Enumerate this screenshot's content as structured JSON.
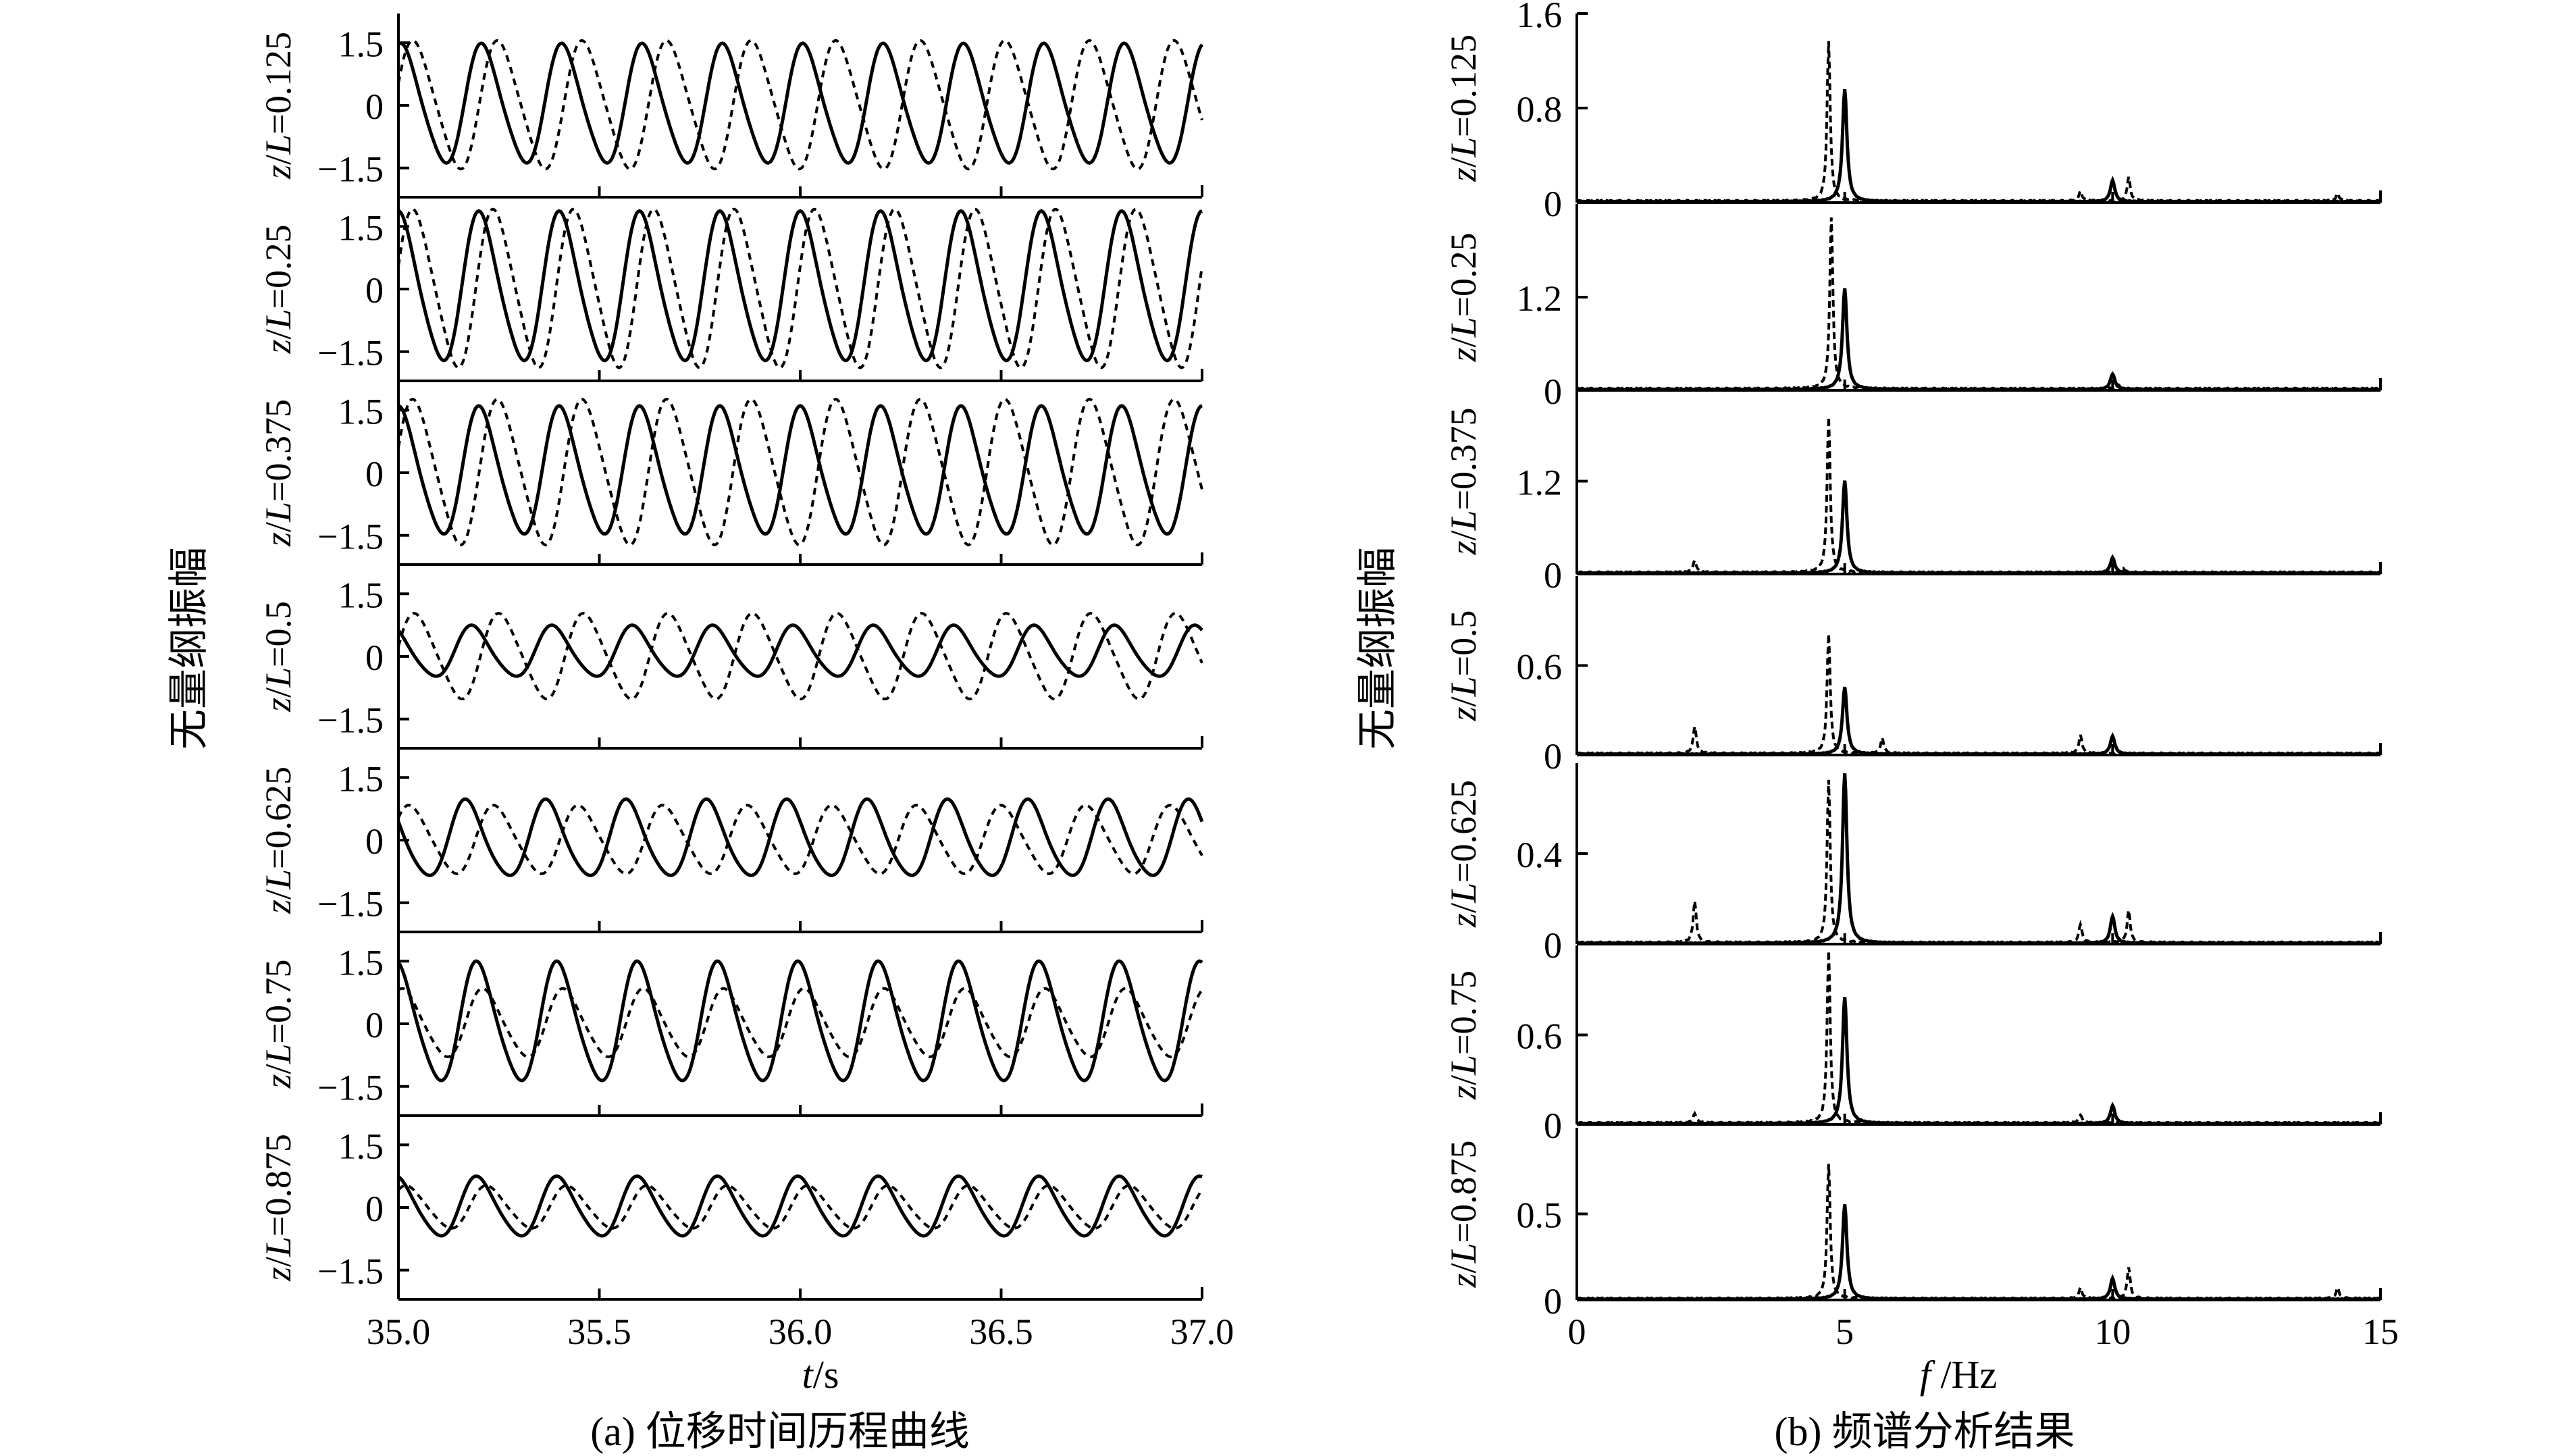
{
  "panel_a": {
    "caption": "(a) 位移时间历程曲线",
    "ylabel": "无量纲振幅",
    "xlabel_italic": "t",
    "xlabel_unit": "/s"
  },
  "panel_b": {
    "caption": "(b) 频谱分析结果",
    "ylabel": "无量纲振幅",
    "xlabel_italic": "f",
    "xlabel_unit": " /Hz"
  },
  "line_color": "#000000",
  "chart_data": [
    {
      "type": "line",
      "title": "",
      "caption": "(a) 位移时间历程曲线",
      "ylabel": "无量纲振幅",
      "xlabel": "t/s",
      "xlim": [
        35.0,
        37.0
      ],
      "xticks": [
        "35.0",
        "35.5",
        "36.0",
        "36.5",
        "37.0"
      ],
      "yticks": [
        "1.5",
        "0",
        "−1.5"
      ],
      "ylim": [
        -2.2,
        2.2
      ],
      "series_styles": [
        "solid",
        "dashed"
      ],
      "subplots": [
        {
          "label": "z/L=0.125",
          "solid_amp": 1.4,
          "dashed_amp": 1.5,
          "solid_freq": 5.0,
          "dashed_freq": 4.75,
          "solid_phase": 1.2,
          "dashed_phase": 0.3,
          "solid_offset": 0.0,
          "dashed_offset": 0.0
        },
        {
          "label": "z/L=0.25",
          "solid_amp": 1.75,
          "dashed_amp": 1.85,
          "solid_freq": 5.0,
          "dashed_freq": 5.0,
          "solid_phase": 1.4,
          "dashed_phase": 0.25,
          "solid_offset": 0.0,
          "dashed_offset": 0.0
        },
        {
          "label": "z/L=0.375",
          "solid_amp": 1.5,
          "dashed_amp": 1.7,
          "solid_freq": 5.0,
          "dashed_freq": 4.75,
          "solid_phase": 1.4,
          "dashed_phase": 0.3,
          "solid_offset": 0.0,
          "dashed_offset": 0.0
        },
        {
          "label": "z/L=0.5",
          "solid_amp": 0.6,
          "dashed_amp": 1.0,
          "solid_freq": 5.0,
          "dashed_freq": 4.75,
          "solid_phase": 2.0,
          "dashed_phase": 0.2,
          "solid_offset": 0.1,
          "dashed_offset": 0.0
        },
        {
          "label": "z/L=0.625",
          "solid_amp": 0.9,
          "dashed_amp": 0.8,
          "solid_freq": 5.0,
          "dashed_freq": 4.75,
          "solid_phase": 2.5,
          "dashed_phase": 0.6,
          "solid_offset": 0.0,
          "dashed_offset": 0.0
        },
        {
          "label": "z/L=0.75",
          "solid_amp": 1.4,
          "dashed_amp": 0.8,
          "solid_freq": 5.0,
          "dashed_freq": 5.0,
          "solid_phase": 1.6,
          "dashed_phase": 1.1,
          "solid_offset": 0.0,
          "dashed_offset": 0.0
        },
        {
          "label": "z/L=0.875",
          "solid_amp": 0.7,
          "dashed_amp": 0.5,
          "solid_freq": 5.0,
          "dashed_freq": 5.0,
          "solid_phase": 1.6,
          "dashed_phase": 0.8,
          "solid_offset": 0.0,
          "dashed_offset": 0.0
        }
      ]
    },
    {
      "type": "line",
      "title": "",
      "caption": "(b) 频谱分析结果",
      "ylabel": "无量纲振幅",
      "xlabel": "f /Hz",
      "xlim": [
        0,
        15
      ],
      "xticks": [
        "0",
        "5",
        "10",
        "15"
      ],
      "series_styles": [
        "solid",
        "dashed"
      ],
      "subplots": [
        {
          "label": "z/L=0.125",
          "ylim": [
            0,
            1.6
          ],
          "yticks": [
            0,
            0.8,
            1.6
          ],
          "yticklabels": [
            "0",
            "0.8",
            "1.6"
          ],
          "solid_peaks": [
            [
              5.0,
              0.95
            ],
            [
              10.0,
              0.18
            ]
          ],
          "dashed_peaks": [
            [
              4.7,
              1.35
            ],
            [
              9.4,
              0.08
            ],
            [
              10.3,
              0.2
            ],
            [
              14.2,
              0.06
            ]
          ]
        },
        {
          "label": "z/L=0.25",
          "ylim": [
            0,
            2.4
          ],
          "yticks": [
            0,
            1.2
          ],
          "yticklabels": [
            "0",
            "1.2"
          ],
          "solid_peaks": [
            [
              5.0,
              1.3
            ],
            [
              10.0,
              0.2
            ]
          ],
          "dashed_peaks": [
            [
              4.75,
              2.2
            ],
            [
              10.1,
              0.05
            ]
          ]
        },
        {
          "label": "z/L=0.375",
          "ylim": [
            0,
            2.4
          ],
          "yticks": [
            0,
            1.2
          ],
          "yticklabels": [
            "0",
            "1.2"
          ],
          "solid_peaks": [
            [
              5.0,
              1.2
            ],
            [
              10.0,
              0.2
            ]
          ],
          "dashed_peaks": [
            [
              4.7,
              2.0
            ],
            [
              2.2,
              0.15
            ],
            [
              10.2,
              0.05
            ]
          ]
        },
        {
          "label": "z/L=0.5",
          "ylim": [
            0,
            1.2
          ],
          "yticks": [
            0,
            0.6
          ],
          "yticklabels": [
            "0",
            "0.6"
          ],
          "solid_peaks": [
            [
              5.0,
              0.45
            ],
            [
              10.0,
              0.12
            ]
          ],
          "dashed_peaks": [
            [
              4.7,
              0.8
            ],
            [
              2.2,
              0.18
            ],
            [
              5.7,
              0.1
            ],
            [
              9.4,
              0.12
            ]
          ]
        },
        {
          "label": "z/L=0.625",
          "ylim": [
            0,
            0.8
          ],
          "yticks": [
            0,
            0.4
          ],
          "yticklabels": [
            "0",
            "0.4"
          ],
          "solid_peaks": [
            [
              5.0,
              0.75
            ],
            [
              10.0,
              0.12
            ]
          ],
          "dashed_peaks": [
            [
              4.7,
              0.72
            ],
            [
              2.2,
              0.18
            ],
            [
              9.4,
              0.08
            ],
            [
              10.3,
              0.14
            ]
          ]
        },
        {
          "label": "z/L=0.75",
          "ylim": [
            0,
            1.2
          ],
          "yticks": [
            0,
            0.6
          ],
          "yticklabels": [
            "0",
            "0.6"
          ],
          "solid_peaks": [
            [
              5.0,
              0.85
            ],
            [
              10.0,
              0.12
            ]
          ],
          "dashed_peaks": [
            [
              4.7,
              1.15
            ],
            [
              2.2,
              0.06
            ],
            [
              9.4,
              0.05
            ]
          ]
        },
        {
          "label": "z/L=0.875",
          "ylim": [
            0,
            1.0
          ],
          "yticks": [
            0.5
          ],
          "yticklabels": [
            "0.5"
          ],
          "solid_peaks": [
            [
              5.0,
              0.55
            ],
            [
              10.0,
              0.12
            ]
          ],
          "dashed_peaks": [
            [
              4.7,
              0.78
            ],
            [
              9.4,
              0.06
            ],
            [
              10.3,
              0.18
            ],
            [
              14.2,
              0.06
            ]
          ]
        }
      ],
      "extra_yticklabel_bottom": "0"
    }
  ]
}
